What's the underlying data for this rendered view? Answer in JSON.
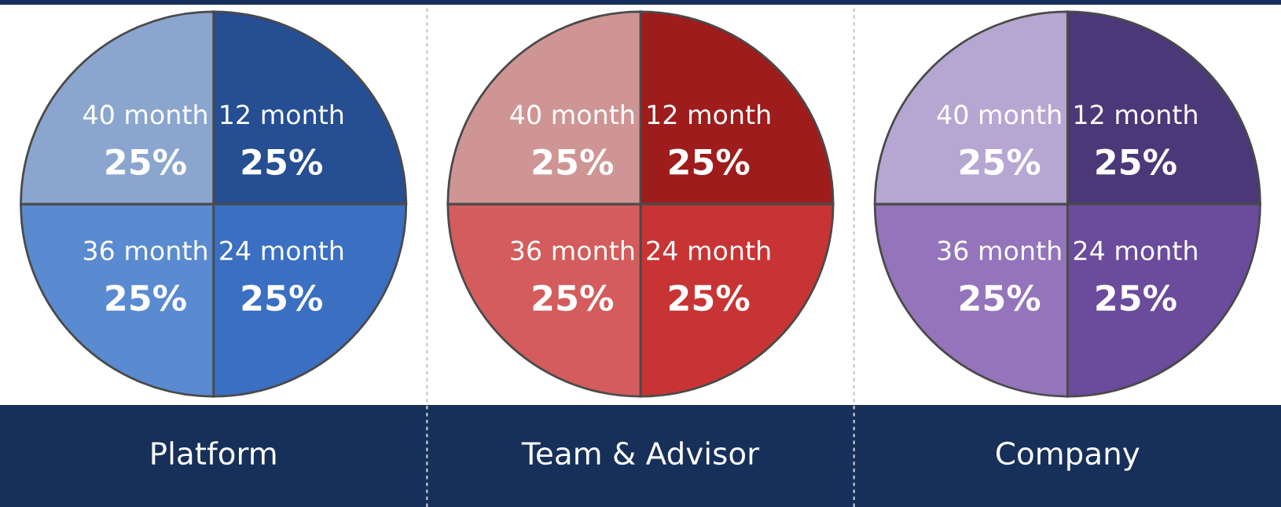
{
  "chart_data": [
    {
      "type": "pie",
      "title": "Platform",
      "categories": [
        "12 month",
        "24 month",
        "36 month",
        "40 month"
      ],
      "values": [
        25,
        25,
        25,
        25
      ],
      "colors": [
        "#254e93",
        "#3a6fc2",
        "#5a8ad0",
        "#8aa6cf"
      ],
      "value_labels": [
        "25%",
        "25%",
        "25%",
        "25%"
      ]
    },
    {
      "type": "pie",
      "title": "Team & Advisor",
      "categories": [
        "12 month",
        "24 month",
        "36 month",
        "40 month"
      ],
      "values": [
        25,
        25,
        25,
        25
      ],
      "colors": [
        "#9e1c1c",
        "#c83434",
        "#d45c5c",
        "#cf9595"
      ],
      "value_labels": [
        "25%",
        "25%",
        "25%",
        "25%"
      ]
    },
    {
      "type": "pie",
      "title": "Company",
      "categories": [
        "12 month",
        "24 month",
        "36 month",
        "40 month"
      ],
      "values": [
        25,
        25,
        25,
        25
      ],
      "colors": [
        "#4b3878",
        "#6a4b9c",
        "#9474bb",
        "#b6a7d2"
      ],
      "value_labels": [
        "25%",
        "25%",
        "25%",
        "25%"
      ]
    }
  ]
}
